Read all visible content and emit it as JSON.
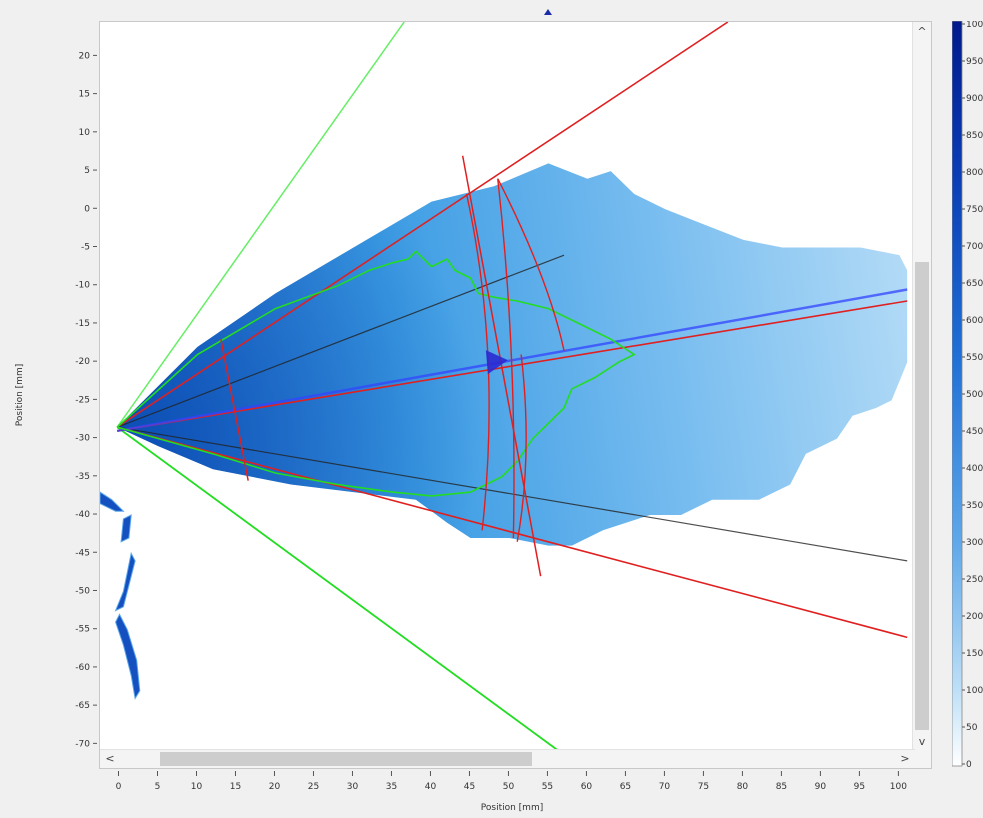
{
  "plot": {
    "x_axis": {
      "label": "Position [mm]",
      "min": -2.5,
      "max": 102,
      "ticks": [
        0,
        5,
        10,
        15,
        20,
        25,
        30,
        35,
        40,
        45,
        50,
        55,
        60,
        65,
        70,
        75,
        80,
        85,
        90,
        95,
        100
      ]
    },
    "y_axis": {
      "label": "Position [mm]",
      "min": -71,
      "max": 24.5,
      "ticks": [
        20,
        15,
        10,
        5,
        0,
        -5,
        -10,
        -15,
        -20,
        -25,
        -30,
        -35,
        -40,
        -45,
        -50,
        -55,
        -60,
        -65,
        -70
      ]
    },
    "colorbar": {
      "ticks": [
        "1000",
        "950",
        "900",
        "850",
        "800",
        "750",
        "700",
        "650",
        "600",
        "550",
        "500",
        "450",
        "400",
        "350",
        "300",
        "250",
        "200",
        "150",
        "100",
        "50",
        "0"
      ],
      "color_high": "#001a8c",
      "color_low": "#ffffff"
    },
    "colors": {
      "spray_core": "#0a64cc",
      "spray_edge": "#8cc8f0",
      "green": "#22dd22",
      "light_green": "#66ee66",
      "red": "#e02020",
      "blue_axis": "#3344ff",
      "cone_black": "#222222"
    },
    "spray_origin": [
      -0.3,
      -28.5
    ],
    "green_cone_outer": [
      [
        -0.3,
        -28.5
      ],
      [
        36.5,
        24.5
      ],
      [
        56.5,
        -71
      ]
    ],
    "red_cone_upper": [
      [
        -0.3,
        -28.5
      ],
      [
        78,
        24.5
      ]
    ],
    "red_cone_lower": [
      [
        -0.3,
        -28.5
      ],
      [
        101,
        -56
      ]
    ],
    "red_center_line": [
      [
        -0.3,
        -29
      ],
      [
        101,
        -12
      ]
    ],
    "blue_axis_line": [
      [
        -0.3,
        -29
      ],
      [
        101,
        -10.5
      ]
    ],
    "black_cone_upper": [
      [
        -0.3,
        -28.5
      ],
      [
        57,
        -6
      ]
    ],
    "black_cone_lower": [
      [
        -0.3,
        -28.5
      ],
      [
        101,
        -46
      ]
    ],
    "direction_arrow": [
      48,
      -20
    ],
    "red_cross_short": [
      [
        13,
        -17
      ],
      [
        16.5,
        -35.5
      ]
    ],
    "red_cross_1": [
      [
        44,
        7
      ],
      [
        54,
        -48
      ]
    ],
    "red_cross_arc_outer": [
      [
        44.5,
        2
      ],
      [
        49,
        -19
      ],
      [
        46.5,
        -42
      ]
    ],
    "red_cross_arc_2": [
      [
        48.5,
        4
      ],
      [
        51,
        -19
      ],
      [
        50.5,
        -43
      ]
    ],
    "red_cross_arc_3": [
      [
        48.5,
        4
      ],
      [
        55,
        -9
      ],
      [
        57,
        -18.5
      ]
    ],
    "red_cross_arc_4": [
      [
        51.5,
        -19
      ],
      [
        53,
        -32
      ],
      [
        51,
        -43.5
      ]
    ],
    "green_contour": [
      [
        -0.3,
        -28.5
      ],
      [
        10,
        -19
      ],
      [
        20,
        -13
      ],
      [
        28,
        -10
      ],
      [
        32,
        -8
      ],
      [
        35,
        -7
      ],
      [
        37,
        -6.5
      ],
      [
        38,
        -5.5
      ],
      [
        40,
        -7.5
      ],
      [
        42,
        -6.5
      ],
      [
        43,
        -8
      ],
      [
        45,
        -9
      ],
      [
        46,
        -11
      ],
      [
        48,
        -11.5
      ],
      [
        51,
        -12
      ],
      [
        55,
        -13
      ],
      [
        59,
        -15
      ],
      [
        63,
        -17
      ],
      [
        66,
        -19
      ],
      [
        64,
        -20
      ],
      [
        61,
        -22
      ],
      [
        58,
        -23.5
      ],
      [
        57,
        -26
      ],
      [
        55,
        -28
      ],
      [
        53,
        -30
      ],
      [
        51,
        -33
      ],
      [
        49,
        -35
      ],
      [
        47,
        -36
      ],
      [
        45,
        -37
      ],
      [
        40,
        -37.5
      ],
      [
        35,
        -37
      ],
      [
        28,
        -36
      ],
      [
        20,
        -34.5
      ],
      [
        12,
        -32
      ],
      [
        5,
        -30
      ],
      [
        -0.3,
        -28.5
      ]
    ],
    "spray_outline": [
      [
        -0.3,
        -28.5
      ],
      [
        10,
        -18
      ],
      [
        20,
        -11
      ],
      [
        30,
        -5
      ],
      [
        40,
        1
      ],
      [
        48,
        3
      ],
      [
        55,
        6
      ],
      [
        60,
        4
      ],
      [
        63,
        5
      ],
      [
        66,
        2
      ],
      [
        70,
        0
      ],
      [
        75,
        -2
      ],
      [
        80,
        -4
      ],
      [
        85,
        -5
      ],
      [
        90,
        -5
      ],
      [
        95,
        -5
      ],
      [
        100,
        -6
      ],
      [
        101,
        -8
      ],
      [
        101,
        -20
      ],
      [
        99,
        -25
      ],
      [
        97,
        -26
      ],
      [
        94,
        -27
      ],
      [
        92,
        -30
      ],
      [
        88,
        -32
      ],
      [
        86,
        -36
      ],
      [
        82,
        -38
      ],
      [
        76,
        -38
      ],
      [
        72,
        -40
      ],
      [
        68,
        -40
      ],
      [
        62,
        -42
      ],
      [
        58,
        -44
      ],
      [
        55,
        -44
      ],
      [
        50,
        -43
      ],
      [
        45,
        -43
      ],
      [
        42,
        -41
      ],
      [
        38,
        -38
      ],
      [
        30,
        -37
      ],
      [
        22,
        -36
      ],
      [
        12,
        -34
      ],
      [
        5,
        -31
      ],
      [
        -0.3,
        -28.5
      ]
    ],
    "fragments": [
      [
        [
          -2.5,
          -37
        ],
        [
          -1,
          -38
        ],
        [
          0,
          -39
        ],
        [
          0.5,
          -39.5
        ],
        [
          -0.5,
          -39.5
        ],
        [
          -1.5,
          -39
        ],
        [
          -2.5,
          -38.5
        ]
      ],
      [
        [
          0.5,
          -40.5
        ],
        [
          1.5,
          -40
        ],
        [
          1.2,
          -43
        ],
        [
          0.2,
          -43.5
        ]
      ],
      [
        [
          1.5,
          -45
        ],
        [
          2,
          -46
        ],
        [
          0.5,
          -52
        ],
        [
          -0.5,
          -52.5
        ],
        [
          0.5,
          -50
        ]
      ],
      [
        [
          0,
          -53
        ],
        [
          1,
          -55
        ],
        [
          2.2,
          -59
        ],
        [
          2.6,
          -63
        ],
        [
          2,
          -64
        ],
        [
          1.5,
          -61
        ],
        [
          0.5,
          -57
        ],
        [
          -0.5,
          -54
        ]
      ]
    ]
  }
}
